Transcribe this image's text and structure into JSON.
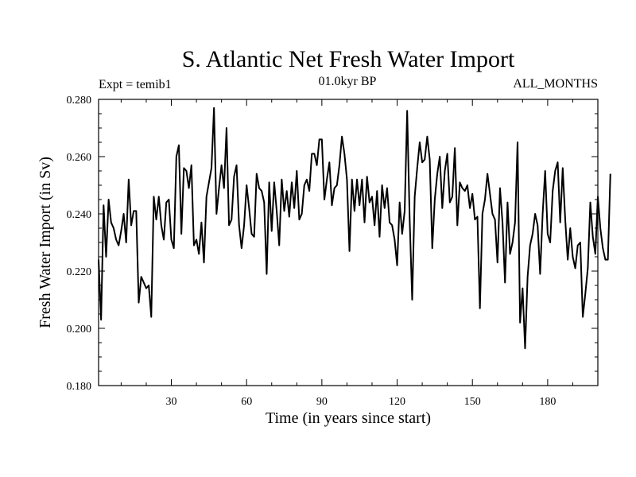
{
  "chart_data": {
    "type": "line",
    "title": "S. Atlantic Net Fresh Water Import",
    "subtitle_left": "Expt = temib1",
    "subtitle_center": "01.0kyr BP",
    "subtitle_right": "ALL_MONTHS",
    "xlabel": "Time (in years since start)",
    "ylabel": "Fresh Water Import (in Sv)",
    "xlim": [
      1,
      200
    ],
    "ylim": [
      0.18,
      0.28
    ],
    "xticks": [
      30,
      60,
      90,
      120,
      150,
      180
    ],
    "xtick_labels": [
      "30",
      "60",
      "90",
      "120",
      "150",
      "180"
    ],
    "yticks": [
      0.18,
      0.2,
      0.22,
      0.24,
      0.26,
      0.28
    ],
    "ytick_labels": [
      "0.180",
      "0.200",
      "0.220",
      "0.240",
      "0.260",
      "0.280"
    ],
    "series": [
      {
        "name": "Fresh Water Import",
        "x_start": 1,
        "x_step": 1,
        "values": [
          0.224,
          0.203,
          0.243,
          0.225,
          0.245,
          0.237,
          0.235,
          0.231,
          0.229,
          0.234,
          0.24,
          0.23,
          0.252,
          0.236,
          0.241,
          0.241,
          0.209,
          0.218,
          0.216,
          0.214,
          0.215,
          0.204,
          0.246,
          0.238,
          0.246,
          0.236,
          0.231,
          0.244,
          0.245,
          0.231,
          0.228,
          0.26,
          0.264,
          0.233,
          0.256,
          0.255,
          0.249,
          0.257,
          0.229,
          0.231,
          0.226,
          0.237,
          0.223,
          0.246,
          0.251,
          0.256,
          0.277,
          0.24,
          0.249,
          0.257,
          0.249,
          0.27,
          0.236,
          0.238,
          0.253,
          0.257,
          0.236,
          0.228,
          0.236,
          0.25,
          0.242,
          0.233,
          0.232,
          0.254,
          0.249,
          0.248,
          0.244,
          0.219,
          0.251,
          0.234,
          0.251,
          0.241,
          0.229,
          0.252,
          0.241,
          0.248,
          0.239,
          0.251,
          0.242,
          0.255,
          0.238,
          0.24,
          0.25,
          0.252,
          0.248,
          0.261,
          0.261,
          0.257,
          0.266,
          0.266,
          0.245,
          0.252,
          0.258,
          0.243,
          0.249,
          0.25,
          0.257,
          0.267,
          0.261,
          0.252,
          0.227,
          0.252,
          0.241,
          0.252,
          0.243,
          0.252,
          0.237,
          0.253,
          0.244,
          0.246,
          0.236,
          0.248,
          0.232,
          0.25,
          0.242,
          0.249,
          0.237,
          0.236,
          0.231,
          0.222,
          0.244,
          0.233,
          0.241,
          0.276,
          0.238,
          0.21,
          0.246,
          0.256,
          0.265,
          0.258,
          0.259,
          0.267,
          0.259,
          0.228,
          0.245,
          0.254,
          0.26,
          0.242,
          0.255,
          0.261,
          0.244,
          0.246,
          0.263,
          0.236,
          0.251,
          0.249,
          0.248,
          0.25,
          0.242,
          0.247,
          0.238,
          0.239,
          0.207,
          0.24,
          0.245,
          0.254,
          0.247,
          0.24,
          0.238,
          0.223,
          0.249,
          0.237,
          0.216,
          0.244,
          0.226,
          0.23,
          0.237,
          0.265,
          0.202,
          0.214,
          0.193,
          0.218,
          0.229,
          0.233,
          0.24,
          0.236,
          0.219,
          0.24,
          0.255,
          0.233,
          0.23,
          0.248,
          0.255,
          0.258,
          0.237,
          0.256,
          0.238,
          0.224,
          0.235,
          0.225,
          0.221,
          0.229,
          0.23,
          0.204,
          0.212,
          0.221,
          0.244,
          0.232,
          0.226,
          0.246,
          0.235,
          0.228,
          0.224,
          0.224,
          0.254
        ]
      }
    ]
  }
}
